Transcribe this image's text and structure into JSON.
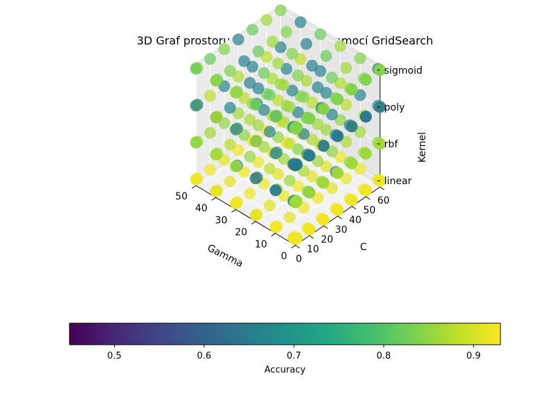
{
  "chart_data": {
    "type": "scatter",
    "projection": "3d",
    "title": "3D Graf prostoru prohledávaného pomocí GridSearch",
    "x": {
      "label": "Gamma",
      "ticks": [
        "0",
        "10",
        "20",
        "30",
        "40",
        "50"
      ],
      "lim": [
        0,
        50
      ]
    },
    "y": {
      "label": "C",
      "ticks": [
        "0",
        "10",
        "20",
        "30",
        "40",
        "50",
        "60"
      ],
      "lim": [
        0,
        60
      ]
    },
    "z": {
      "label": "Kernel",
      "ticks": [
        "linear",
        "rbf",
        "poly",
        "sigmoid"
      ]
    },
    "color": {
      "label": "Accuracy",
      "colormap": "viridis",
      "range": [
        0.45,
        0.93
      ],
      "ticks": [
        "0.5",
        "0.6",
        "0.7",
        "0.8",
        "0.9"
      ],
      "orientation": "horizontal",
      "placement": "bottom"
    },
    "grid": true,
    "gamma_values": [
      0,
      0.01,
      0.1,
      1,
      10,
      20,
      30,
      40,
      50
    ],
    "c_values": [
      0,
      0.1,
      1,
      10,
      20,
      30,
      40,
      50,
      60
    ],
    "accuracy_by_kernel": {
      "linear": [
        [
          0.92,
          0.92,
          0.92,
          0.92,
          0.92,
          0.92,
          0.92,
          0.92,
          0.92
        ],
        [
          0.92,
          0.92,
          0.92,
          0.92,
          0.92,
          0.92,
          0.92,
          0.92,
          0.92
        ],
        [
          0.92,
          0.92,
          0.92,
          0.92,
          0.92,
          0.92,
          0.92,
          0.92,
          0.92
        ],
        [
          0.92,
          0.92,
          0.92,
          0.92,
          0.92,
          0.92,
          0.92,
          0.92,
          0.92
        ],
        [
          0.92,
          0.92,
          0.92,
          0.91,
          0.92,
          0.92,
          0.91,
          0.92,
          0.92
        ],
        [
          0.91,
          0.91,
          0.92,
          0.91,
          0.92,
          0.92,
          0.91,
          0.91,
          0.92
        ],
        [
          0.92,
          0.92,
          0.91,
          0.92,
          0.92,
          0.91,
          0.92,
          0.92,
          0.91
        ],
        [
          0.91,
          0.92,
          0.92,
          0.91,
          0.92,
          0.92,
          0.91,
          0.92,
          0.92
        ],
        [
          0.92,
          0.91,
          0.92,
          0.92,
          0.91,
          0.92,
          0.92,
          0.92,
          0.91
        ]
      ],
      "rbf": [
        [
          0.86,
          0.86,
          0.86,
          0.86,
          0.86,
          0.86,
          0.86,
          0.86,
          0.86
        ],
        [
          0.87,
          0.86,
          0.87,
          0.86,
          0.87,
          0.86,
          0.87,
          0.86,
          0.87
        ],
        [
          0.62,
          0.84,
          0.86,
          0.62,
          0.84,
          0.86,
          0.83,
          0.84,
          0.86
        ],
        [
          0.66,
          0.85,
          0.86,
          0.85,
          0.86,
          0.66,
          0.85,
          0.86,
          0.85
        ],
        [
          0.64,
          0.66,
          0.85,
          0.86,
          0.87,
          0.86,
          0.85,
          0.87,
          0.86
        ],
        [
          0.62,
          0.84,
          0.63,
          0.88,
          0.86,
          0.84,
          0.87,
          0.86,
          0.85
        ],
        [
          0.85,
          0.86,
          0.66,
          0.85,
          0.86,
          0.85,
          0.84,
          0.83,
          0.86
        ],
        [
          0.86,
          0.87,
          0.86,
          0.88,
          0.85,
          0.86,
          0.87,
          0.85,
          0.84
        ],
        [
          0.85,
          0.84,
          0.87,
          0.86,
          0.85,
          0.86,
          0.84,
          0.83,
          0.85
        ]
      ],
      "poly": [
        [
          0.64,
          0.64,
          0.64,
          0.64,
          0.64,
          0.64,
          0.64,
          0.64,
          0.64
        ],
        [
          0.65,
          0.64,
          0.66,
          0.64,
          0.65,
          0.64,
          0.65,
          0.64,
          0.65
        ],
        [
          0.66,
          0.66,
          0.88,
          0.66,
          0.88,
          0.66,
          0.88,
          0.66,
          0.88
        ],
        [
          0.65,
          0.66,
          0.88,
          0.66,
          0.88,
          0.66,
          0.66,
          0.88,
          0.66
        ],
        [
          0.66,
          0.87,
          0.66,
          0.88,
          0.66,
          0.86,
          0.66,
          0.88,
          0.66
        ],
        [
          0.87,
          0.66,
          0.88,
          0.66,
          0.87,
          0.66,
          0.88,
          0.66,
          0.87
        ],
        [
          0.66,
          0.88,
          0.66,
          0.87,
          0.66,
          0.88,
          0.66,
          0.87,
          0.66
        ],
        [
          0.88,
          0.66,
          0.87,
          0.66,
          0.88,
          0.66,
          0.87,
          0.66,
          0.88
        ],
        [
          0.66,
          0.87,
          0.66,
          0.88,
          0.66,
          0.87,
          0.66,
          0.88,
          0.66
        ]
      ],
      "sigmoid": [
        [
          0.84,
          0.84,
          0.84,
          0.84,
          0.84,
          0.84,
          0.84,
          0.84,
          0.84
        ],
        [
          0.85,
          0.84,
          0.85,
          0.84,
          0.85,
          0.84,
          0.85,
          0.84,
          0.85
        ],
        [
          0.82,
          0.86,
          0.84,
          0.82,
          0.86,
          0.84,
          0.82,
          0.86,
          0.84
        ],
        [
          0.66,
          0.82,
          0.86,
          0.84,
          0.66,
          0.82,
          0.86,
          0.84,
          0.66
        ],
        [
          0.84,
          0.66,
          0.82,
          0.86,
          0.84,
          0.66,
          0.82,
          0.86,
          0.84
        ],
        [
          0.82,
          0.84,
          0.66,
          0.82,
          0.86,
          0.84,
          0.66,
          0.82,
          0.86
        ],
        [
          0.86,
          0.82,
          0.84,
          0.66,
          0.82,
          0.86,
          0.84,
          0.66,
          0.82
        ],
        [
          0.84,
          0.86,
          0.82,
          0.84,
          0.66,
          0.82,
          0.86,
          0.84,
          0.66
        ],
        [
          0.82,
          0.84,
          0.86,
          0.82,
          0.84,
          0.66,
          0.82,
          0.86,
          0.84
        ]
      ]
    }
  }
}
